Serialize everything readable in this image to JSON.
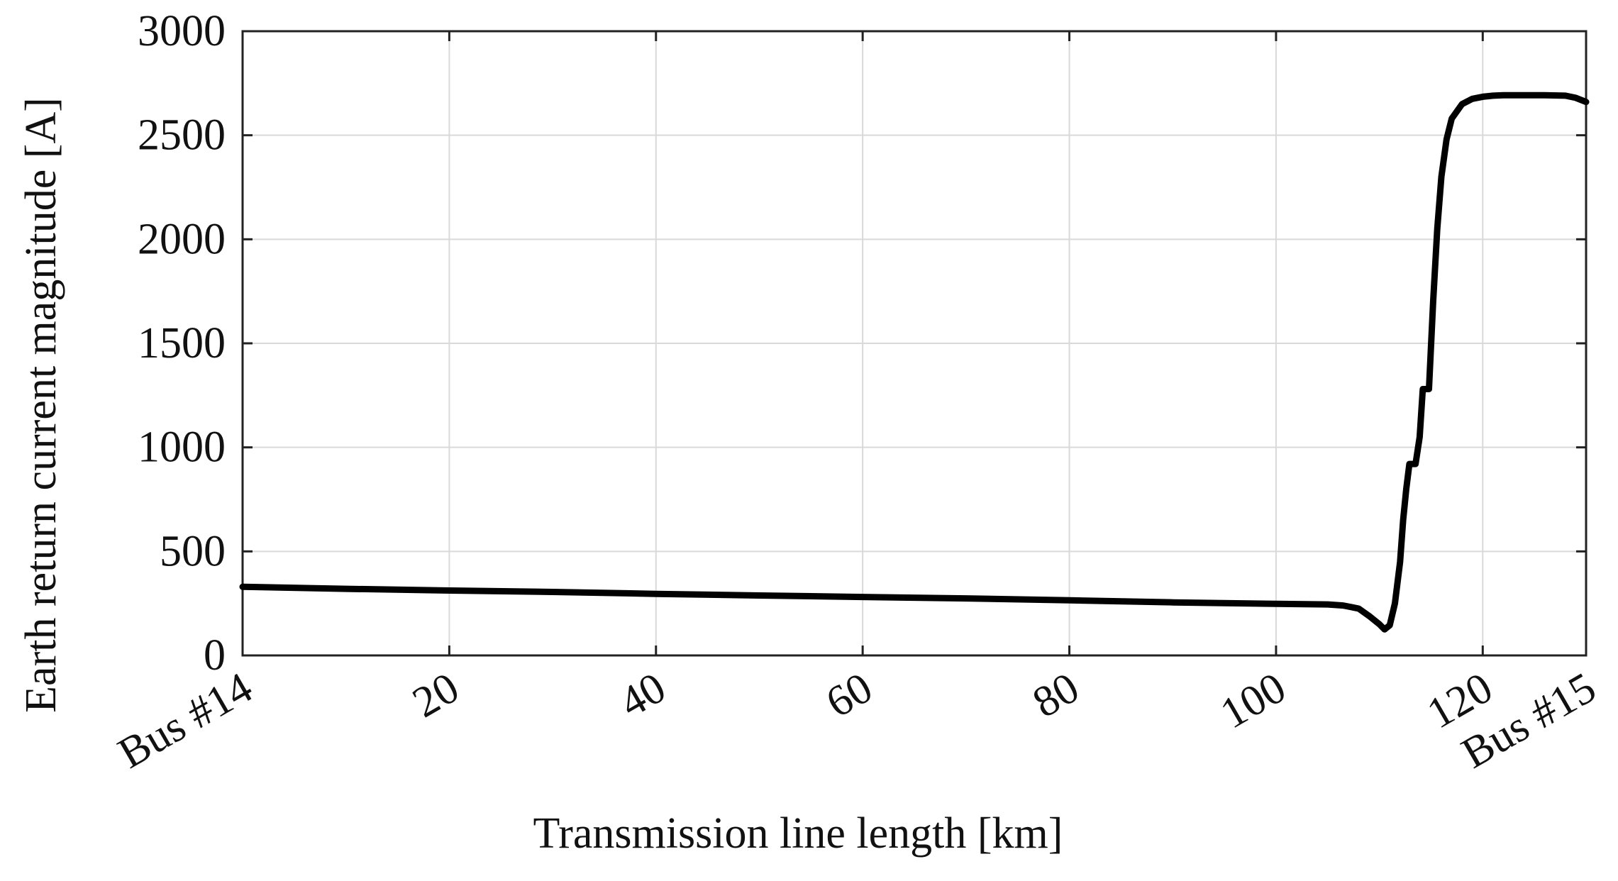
{
  "chart_data": {
    "type": "line",
    "xlabel": "Transmission line length [km]",
    "ylabel": "Earth return current magnitude [A]",
    "xlim": [
      0,
      130
    ],
    "ylim": [
      0,
      3000
    ],
    "x_ticks": [
      {
        "value": 0,
        "label": "Bus #14"
      },
      {
        "value": 20,
        "label": "20"
      },
      {
        "value": 40,
        "label": "40"
      },
      {
        "value": 60,
        "label": "60"
      },
      {
        "value": 80,
        "label": "80"
      },
      {
        "value": 100,
        "label": "100"
      },
      {
        "value": 120,
        "label": "120"
      },
      {
        "value": 130,
        "label": "Bus #15"
      }
    ],
    "y_ticks": [
      0,
      500,
      1000,
      1500,
      2000,
      2500,
      3000
    ],
    "grid": true,
    "line_color": "#000000",
    "series": [
      {
        "x": [
          0,
          10,
          20,
          30,
          40,
          50,
          60,
          70,
          80,
          90,
          100,
          105,
          106.5,
          108,
          109,
          110,
          110.5,
          111,
          111.5,
          112,
          112.3,
          112.6,
          112.9,
          113.2,
          113.5,
          113.9,
          114.2,
          114.5,
          114.8,
          115.2,
          115.6,
          116,
          116.5,
          117,
          118,
          119,
          120,
          121,
          122,
          124,
          126,
          128,
          129,
          130
        ],
        "y": [
          330,
          320,
          312,
          305,
          296,
          288,
          281,
          274,
          265,
          255,
          248,
          245,
          240,
          225,
          190,
          150,
          125,
          145,
          250,
          450,
          650,
          800,
          920,
          920,
          920,
          1050,
          1280,
          1280,
          1280,
          1700,
          2050,
          2300,
          2480,
          2580,
          2650,
          2675,
          2685,
          2690,
          2692,
          2692,
          2692,
          2690,
          2680,
          2660
        ]
      }
    ]
  }
}
